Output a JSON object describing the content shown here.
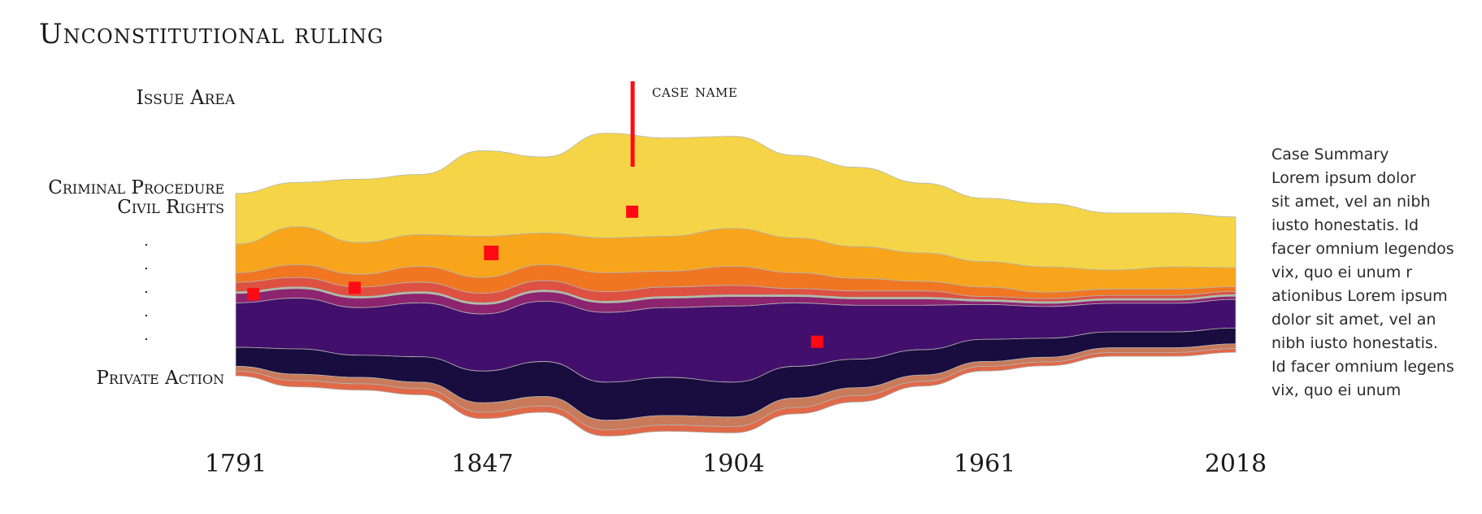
{
  "chart_data": {
    "type": "area",
    "title": "Unconstitutional ruling",
    "ylabel": "Issue Area",
    "x": [
      1791,
      1805,
      1819,
      1833,
      1847,
      1861,
      1875,
      1889,
      1904,
      1918,
      1932,
      1947,
      1961,
      1975,
      1990,
      2004,
      2018
    ],
    "x_ticks": [
      "1791",
      "1847",
      "1904",
      "1961",
      "2018"
    ],
    "category_labels": [
      "Criminal Procedure",
      "Civil Rights",
      ".",
      ".",
      ".",
      ".",
      ".",
      "Private Action"
    ],
    "series": [
      {
        "color": "#f5d547",
        "values": [
          16,
          14,
          20,
          19,
          27,
          24,
          33,
          31,
          29,
          26,
          25,
          22,
          20,
          20,
          18,
          17,
          16
        ]
      },
      {
        "color": "#f9a51b",
        "values": [
          9,
          12,
          10,
          10,
          13,
          10,
          11,
          11,
          12,
          11,
          10,
          9,
          8,
          8,
          6,
          7,
          6
        ]
      },
      {
        "color": "#f07622",
        "values": [
          3,
          4,
          4,
          5,
          5,
          5,
          6,
          5,
          6,
          5,
          4,
          3,
          3,
          2,
          2,
          2,
          1.5
        ]
      },
      {
        "color": "#dd5142",
        "values": [
          3,
          3,
          3,
          3,
          3,
          3,
          3,
          3,
          3,
          2,
          2,
          2,
          1,
          1,
          1,
          1,
          1
        ]
      },
      {
        "color": "#a9c6a2",
        "values": [
          0.5,
          0.5,
          0.5,
          0.5,
          0.5,
          0.5,
          0.5,
          0.5,
          0.5,
          0.5,
          0.5,
          0.5,
          0.5,
          0.5,
          0.5,
          0.5,
          0.5
        ]
      },
      {
        "color": "#8d2470",
        "values": [
          3,
          3,
          3,
          3,
          3,
          3,
          3,
          3,
          3,
          2,
          2,
          2,
          1,
          1,
          1,
          1,
          1
        ]
      },
      {
        "color": "#430f6c",
        "values": [
          14,
          16,
          15,
          17,
          18,
          19,
          22,
          22,
          24,
          20,
          17,
          14,
          11,
          10,
          9,
          9,
          9
        ]
      },
      {
        "color": "#190c3e",
        "values": [
          6,
          8,
          7,
          8,
          10,
          11,
          12,
          12,
          11,
          10,
          9,
          8,
          7,
          6,
          5,
          5,
          5
        ]
      },
      {
        "color": "#c97a5a",
        "values": [
          1.5,
          2,
          2,
          2,
          3,
          3,
          3,
          3,
          3,
          3,
          2.5,
          2,
          1.5,
          1.5,
          1.5,
          1.5,
          1.5
        ]
      },
      {
        "color": "#e0694a",
        "values": [
          1.5,
          2,
          2,
          2,
          2,
          2,
          2,
          2,
          2,
          2,
          2,
          1.5,
          1.5,
          1.2,
          1.2,
          1.2,
          1.2
        ]
      }
    ],
    "rulings": [
      {
        "x": 1795,
        "y": -3
      },
      {
        "x": 1818,
        "y": -1
      },
      {
        "x": 1849,
        "y": 10
      },
      {
        "x": 1881,
        "y": 23
      },
      {
        "x": 1923,
        "y": -18
      }
    ],
    "grid": false,
    "legend": "none"
  },
  "labels": {
    "title": "Unconstitutional ruling",
    "issue_area": "Issue Area",
    "case_name": "case name",
    "categories": [
      "Criminal Procedure",
      "Civil Rights",
      "Private Action"
    ],
    "dots": [
      ".",
      ".",
      ".",
      ".",
      "."
    ]
  },
  "summary": {
    "title": "Case Summary",
    "body": "Lorem ipsum dolor\n sit amet, vel an nibh\niusto honestatis. Id\n facer omnium legendos\n vix, quo ei unum r\nationibus Lorem ipsum\ndolor sit amet, vel an\nnibh iusto honestatis.\nId facer omnium legens\nvix, quo ei unum"
  },
  "colors": {
    "ruling_marker": "#ff0a14",
    "stroke": "#b0b4b0"
  }
}
